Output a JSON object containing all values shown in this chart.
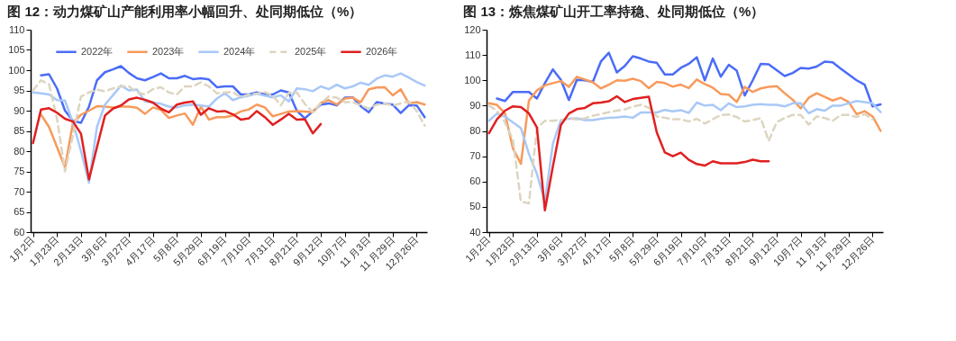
{
  "chart_data": [
    {
      "type": "line",
      "title": "图 12：动力煤矿山产能利用率小幅回升、处同期低位（%）",
      "categories": [
        "1月2日",
        null,
        null,
        "1月23日",
        null,
        null,
        "2月13日",
        null,
        null,
        "3月6日",
        null,
        null,
        "3月27日",
        null,
        null,
        "4月17日",
        null,
        null,
        "5月8日",
        null,
        null,
        "5月29日",
        null,
        null,
        "6月19日",
        null,
        null,
        "7月10日",
        null,
        null,
        "7月31日",
        null,
        null,
        "8月21日",
        null,
        null,
        "9月12日",
        null,
        null,
        "10月7日",
        null,
        null,
        "11 月3日",
        null,
        null,
        "11 月29日",
        null,
        null,
        "12月26日",
        null
      ],
      "ylim": [
        60,
        110
      ],
      "yticks": [
        60,
        65,
        70,
        75,
        80,
        85,
        90,
        95,
        100,
        105,
        110
      ],
      "grid": false,
      "legend": "top",
      "series": [
        {
          "name": "2022年",
          "color": "#4a6cf7",
          "values": [
            null,
            98.7,
            99,
            95.5,
            90,
            87.5,
            87,
            91,
            97.5,
            99.5,
            100.2,
            101,
            99.3,
            98,
            97.5,
            98.3,
            99.2,
            98,
            98,
            98.6,
            97.8,
            98,
            97.7,
            95.8,
            96,
            96,
            94,
            94,
            94.5,
            94,
            94,
            95,
            94.5,
            90,
            88.1,
            89.8,
            91.5,
            91.8,
            91.3,
            93.2,
            93.3,
            91.1,
            89.6,
            92.1,
            91.7,
            91.5,
            89.4,
            91.3,
            91.3,
            88.4
          ]
        },
        {
          "name": "2023年",
          "color": "#f79a5b",
          "values": [
            null,
            89,
            86,
            81,
            76,
            87,
            89,
            90,
            91.1,
            91,
            90.8,
            91,
            91,
            90.7,
            89.2,
            90.8,
            90.2,
            88.2,
            88.8,
            89.3,
            86.5,
            91,
            87.8,
            88.4,
            88.4,
            88.8,
            89.8,
            90.3,
            91.5,
            90.8,
            88.6,
            89.2,
            89.8,
            89.9,
            89.8,
            89.6,
            91.9,
            92.6,
            91.5,
            93,
            93.2,
            92.1,
            95.3,
            95.7,
            95.8,
            93.8,
            95.3,
            91.8,
            92.1,
            91.5
          ]
        },
        {
          "name": "2024年",
          "color": "#a8c8f8",
          "values": [
            94.5,
            94.3,
            94,
            92.6,
            92.5,
            87,
            80,
            72.2,
            86,
            91.5,
            93.8,
            96.2,
            95,
            95.2,
            92.3,
            92,
            91.7,
            91,
            90.8,
            91.3,
            91.5,
            91.3,
            91,
            93,
            94.3,
            92.6,
            93.3,
            93.7,
            94.2,
            93.7,
            93.3,
            93.8,
            92.3,
            95.5,
            95.3,
            94.8,
            96,
            95.3,
            96.4,
            95.5,
            96,
            96.9,
            96.4,
            97.9,
            98.7,
            98.4,
            99.2,
            98.2,
            97.1,
            96.2
          ]
        },
        {
          "name": "2025年",
          "color": "#ddd5c0",
          "line_style": "dashed",
          "values": [
            95,
            97.5,
            96.5,
            88,
            75,
            84,
            93.5,
            94.5,
            95.2,
            94.8,
            95.5,
            96,
            96,
            94.5,
            94,
            95.3,
            95.8,
            94.5,
            94,
            96,
            96,
            97,
            96,
            94.3,
            94.5,
            94.6,
            93.3,
            94,
            94.2,
            94.6,
            93.7,
            91.3,
            94.4,
            94.5,
            91.7,
            89.6,
            91.8,
            93.5,
            93.2,
            92.1,
            92.1,
            91.3,
            90.5,
            91.5,
            91.7,
            91.3,
            91.8,
            92.3,
            89.9,
            86.3
          ]
        },
        {
          "name": "2026年",
          "color": "#e02020",
          "values": [
            82,
            90.3,
            90.6,
            89.5,
            88,
            87.3,
            84.3,
            73,
            81,
            88.8,
            90.5,
            91.3,
            92.8,
            93.2,
            92.7,
            92,
            90.5,
            89.6,
            91.5,
            92,
            92.3,
            89,
            90.6,
            89.8,
            89.9,
            89.1,
            87.8,
            88.1,
            89.9,
            88.4,
            86.5,
            87.8,
            89.2,
            87.8,
            87.9,
            84.4,
            86.7,
            null,
            null,
            null,
            null,
            null,
            null,
            null,
            null,
            null,
            null,
            null,
            null,
            null
          ]
        }
      ]
    },
    {
      "type": "line",
      "title": "图 13：炼焦煤矿山开工率持稳、处同期低位（%）",
      "categories": [
        "1月2日",
        null,
        null,
        "1月23日",
        null,
        null,
        "2月13日",
        null,
        null,
        "3月6日",
        null,
        null,
        "3月27日",
        null,
        null,
        "4月17日",
        null,
        null,
        "5月8日",
        null,
        null,
        "5月29日",
        null,
        null,
        "6月19日",
        null,
        null,
        "7月10日",
        null,
        null,
        "7月31日",
        null,
        null,
        "8月21日",
        null,
        null,
        "9月12日",
        null,
        null,
        "10月7日",
        null,
        null,
        "11 月3日",
        null,
        null,
        "11 月29日",
        null,
        null,
        "12月26日",
        null
      ],
      "ylim": [
        40,
        120
      ],
      "yticks": [
        40,
        50,
        60,
        70,
        80,
        90,
        100,
        110,
        120
      ],
      "grid": false,
      "legend": "top",
      "series": [
        {
          "name": "2022年",
          "color": "#4a6cf7",
          "values": [
            null,
            92.8,
            91.8,
            95.4,
            95.4,
            95.4,
            92.8,
            98.9,
            104.3,
            100.2,
            92.2,
            100.2,
            100,
            99.4,
            107.4,
            110.9,
            103.1,
            105.7,
            109.5,
            108.6,
            107.4,
            106.9,
            102.3,
            102.3,
            104.9,
            106.5,
            109.1,
            100,
            108.6,
            101.4,
            106.1,
            103.8,
            94,
            100,
            106.5,
            106.3,
            104,
            101.7,
            102.9,
            104.9,
            104.6,
            105.4,
            107.4,
            107.1,
            104.6,
            102.3,
            100,
            98.3,
            89.7,
            90.5
          ]
        },
        {
          "name": "2023年",
          "color": "#f79a5b",
          "values": [
            90.9,
            90.3,
            87,
            73.1,
            67,
            92,
            96,
            98,
            98.9,
            99.7,
            97.4,
            101.4,
            100.3,
            99.2,
            96.8,
            98.3,
            100,
            99.8,
            100.6,
            99.7,
            96.9,
            99.4,
            98.9,
            97.5,
            98.3,
            96.9,
            100.3,
            98.5,
            97.1,
            94.6,
            94.3,
            91.4,
            97.4,
            95.4,
            96.8,
            97.4,
            97.7,
            94.9,
            92.3,
            88.9,
            93.1,
            94.9,
            93.5,
            92,
            93.1,
            91.4,
            86.6,
            87.8,
            85.7,
            80
          ]
        },
        {
          "name": "2024年",
          "color": "#a8c8f8",
          "values": [
            84,
            86.9,
            85.7,
            83.4,
            81.1,
            70.9,
            63,
            52,
            75,
            84.3,
            84.8,
            85,
            84.3,
            84.3,
            84.8,
            85.2,
            85.3,
            85.7,
            85.2,
            87.3,
            87.3,
            87.3,
            88.3,
            87.7,
            88.2,
            87.1,
            91.2,
            90,
            90.3,
            88.2,
            90.9,
            89.4,
            89.7,
            90.3,
            90.6,
            90.3,
            90.3,
            89.7,
            90.9,
            90.9,
            87,
            88.6,
            88,
            90,
            90,
            90.9,
            91.8,
            91.4,
            90.9,
            87.4
          ]
        },
        {
          "name": "2025年",
          "color": "#ddd5c0",
          "line_style": "dashed",
          "values": [
            90,
            88,
            83.4,
            76.6,
            52,
            51.4,
            81.1,
            84,
            84,
            84.3,
            85,
            84.5,
            85,
            86,
            86.7,
            87.4,
            88,
            88.5,
            89.6,
            90.3,
            89.2,
            85.7,
            85.2,
            84.6,
            84.6,
            83.7,
            84.8,
            82.9,
            84.6,
            86.3,
            86.5,
            85.5,
            83.7,
            84.3,
            85.1,
            76,
            83.5,
            85.1,
            86.3,
            86.3,
            82.5,
            85.7,
            85.1,
            84,
            86.3,
            86.3,
            85.5,
            86.6,
            84.6,
            null
          ]
        },
        {
          "name": "2026年",
          "color": "#e02020",
          "values": [
            79.1,
            84.6,
            88,
            89.7,
            89.4,
            86.9,
            81.4,
            48.6,
            66,
            82.3,
            86.9,
            88.6,
            89.1,
            90.9,
            91.2,
            91.7,
            93.7,
            91.4,
            92.6,
            93.1,
            93.5,
            79.4,
            71.5,
            70,
            71.4,
            68.6,
            66.9,
            66.3,
            68,
            67.2,
            67.2,
            67.2,
            67.7,
            68.6,
            68,
            68,
            null,
            null,
            null,
            null,
            null,
            null,
            null,
            null,
            null,
            null,
            null,
            null,
            null,
            null
          ]
        }
      ]
    }
  ]
}
